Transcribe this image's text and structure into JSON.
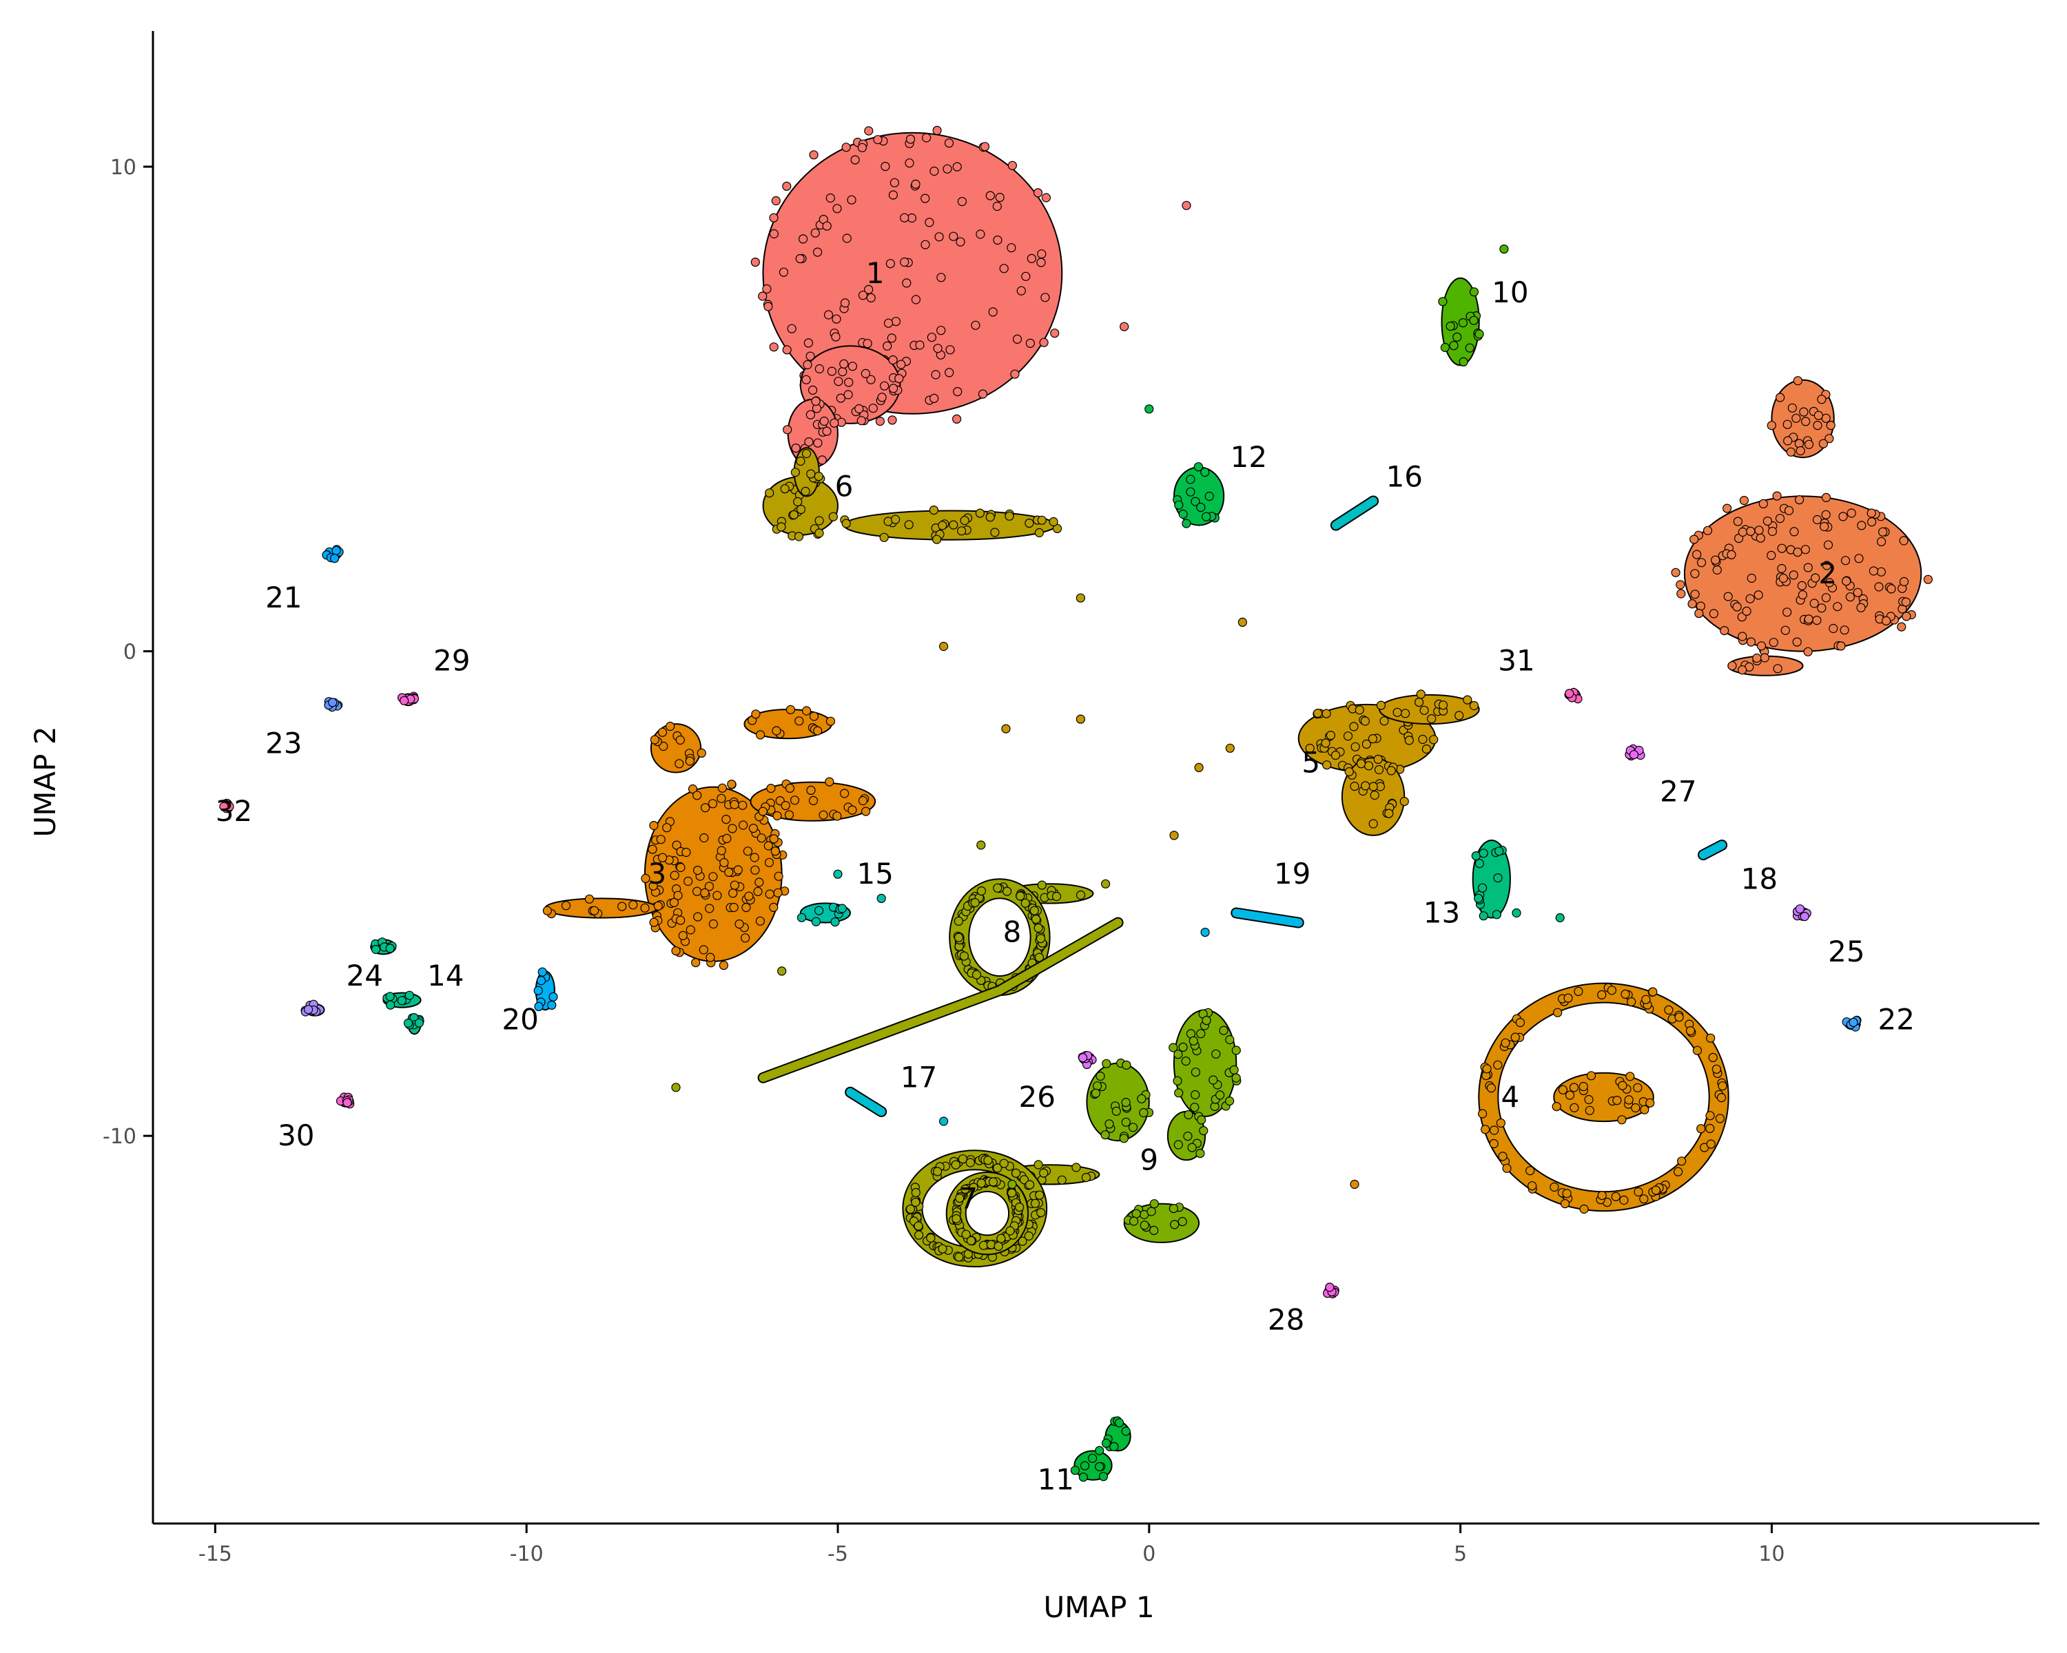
{
  "chart_data": {
    "type": "scatter",
    "title": "",
    "xlabel": "UMAP 1",
    "ylabel": "UMAP 2",
    "xlim": [
      -16,
      14.3
    ],
    "ylim": [
      -18,
      12.8
    ],
    "x_ticks": [
      -15,
      -10,
      -5,
      0,
      5,
      10
    ],
    "x_tick_labels": [
      "-15",
      "-10",
      "-5",
      "0",
      "5",
      "10"
    ],
    "y_ticks": [
      -10,
      0,
      10
    ],
    "y_tick_labels": [
      "-10",
      "0",
      "10"
    ],
    "grid": false,
    "legend": "none",
    "point_outline": "#000000",
    "clusters": [
      {
        "label": "1",
        "color": "#F8766D",
        "label_pos": [
          -4.4,
          7.8
        ],
        "points": [
          [
            -3.8,
            7.8,
            2.4,
            2.9
          ],
          [
            -4.8,
            5.5,
            0.8,
            0.8
          ],
          [
            -5.4,
            4.5,
            0.4,
            0.7
          ]
        ]
      },
      {
        "label": "2",
        "color": "#EF7F49",
        "label_pos": [
          10.9,
          1.6
        ],
        "points": [
          [
            10.5,
            1.6,
            1.9,
            1.6
          ],
          [
            10.5,
            4.8,
            0.5,
            0.8
          ],
          [
            9.9,
            -0.3,
            0.6,
            0.2
          ]
        ]
      },
      {
        "label": "3",
        "color": "#E58700",
        "label_pos": [
          -7.9,
          -4.6
        ],
        "points": [
          [
            -7.0,
            -4.6,
            1.1,
            1.8
          ],
          [
            -5.4,
            -3.1,
            1.0,
            0.4
          ],
          [
            -5.8,
            -1.5,
            0.7,
            0.3
          ],
          [
            -8.8,
            -5.3,
            0.9,
            0.2
          ],
          [
            -7.6,
            -2.0,
            0.4,
            0.5
          ]
        ]
      },
      {
        "label": "4",
        "color": "#DE8C00",
        "label_pos": [
          5.8,
          -9.2
        ],
        "ring": [
          7.3,
          -9.2,
          3.7,
          4.3
        ],
        "points": [
          [
            7.3,
            -9.2,
            0.8,
            0.5
          ]
        ]
      },
      {
        "label": "5",
        "color": "#C99800",
        "label_pos": [
          2.6,
          -2.3
        ],
        "points": [
          [
            3.5,
            -1.8,
            1.1,
            0.7
          ],
          [
            3.6,
            -3.0,
            0.5,
            0.8
          ],
          [
            4.5,
            -1.2,
            0.8,
            0.3
          ]
        ]
      },
      {
        "label": "6",
        "color": "#B79F00",
        "label_pos": [
          -4.9,
          3.4
        ],
        "points": [
          [
            -5.6,
            3.0,
            0.6,
            0.6
          ],
          [
            -3.2,
            2.6,
            1.7,
            0.3
          ],
          [
            -5.5,
            3.7,
            0.2,
            0.5
          ]
        ]
      },
      {
        "label": "7",
        "color": "#A3A500",
        "label_pos": [
          -2.9,
          -11.3
        ],
        "ring": [
          -2.8,
          -11.5,
          2.0,
          2.0
        ],
        "ring2": [
          -2.6,
          -11.6,
          1.0,
          1.3
        ],
        "points": [
          [
            -1.6,
            -10.8,
            0.8,
            0.2
          ]
        ]
      },
      {
        "label": "8",
        "color": "#9CA700",
        "label_pos": [
          -2.2,
          -5.8
        ],
        "ring": [
          -2.4,
          -5.9,
          1.3,
          2.0
        ],
        "line": [
          [
            -6.2,
            -8.8
          ],
          [
            -2.4,
            -7.0
          ],
          [
            -0.5,
            -5.6
          ]
        ],
        "points": [
          [
            -1.6,
            -5.0,
            0.7,
            0.2
          ]
        ]
      },
      {
        "label": "9",
        "color": "#7CAE00",
        "label_pos": [
          0.0,
          -10.5
        ],
        "points": [
          [
            0.9,
            -8.5,
            0.5,
            1.1
          ],
          [
            -0.5,
            -9.3,
            0.5,
            0.8
          ],
          [
            0.2,
            -11.8,
            0.6,
            0.4
          ],
          [
            0.6,
            -10.0,
            0.3,
            0.5
          ]
        ]
      },
      {
        "label": "10",
        "color": "#4FB400",
        "label_pos": [
          5.8,
          7.4
        ],
        "points": [
          [
            5.0,
            6.8,
            0.3,
            0.9
          ]
        ]
      },
      {
        "label": "11",
        "color": "#00BA38",
        "label_pos": [
          -1.5,
          -17.1
        ],
        "points": [
          [
            -0.9,
            -16.8,
            0.3,
            0.3
          ],
          [
            -0.5,
            -16.2,
            0.2,
            0.3
          ]
        ]
      },
      {
        "label": "12",
        "color": "#00BE49",
        "label_pos": [
          1.6,
          4.0
        ],
        "points": [
          [
            0.8,
            3.2,
            0.4,
            0.6
          ]
        ]
      },
      {
        "label": "13",
        "color": "#00BF7D",
        "label_pos": [
          4.7,
          -5.4
        ],
        "points": [
          [
            5.5,
            -4.7,
            0.3,
            0.8
          ]
        ]
      },
      {
        "label": "14",
        "color": "#00C08B",
        "label_pos": [
          -11.3,
          -6.7
        ],
        "points": [
          [
            -12.3,
            -6.1,
            0.2,
            0.15
          ],
          [
            -12.0,
            -7.2,
            0.3,
            0.15
          ],
          [
            -11.8,
            -7.7,
            0.1,
            0.2
          ]
        ]
      },
      {
        "label": "15",
        "color": "#00C1A7",
        "label_pos": [
          -4.4,
          -4.6
        ],
        "points": [
          [
            -5.2,
            -5.4,
            0.4,
            0.2
          ]
        ]
      },
      {
        "label": "16",
        "color": "#00BEC1",
        "label_pos": [
          4.1,
          3.6
        ],
        "line": [
          [
            3.0,
            2.6
          ],
          [
            3.6,
            3.1
          ]
        ]
      },
      {
        "label": "17",
        "color": "#00BDD0",
        "label_pos": [
          -3.7,
          -8.8
        ],
        "line": [
          [
            -4.8,
            -9.1
          ],
          [
            -4.3,
            -9.5
          ]
        ]
      },
      {
        "label": "18",
        "color": "#00BBDA",
        "label_pos": [
          9.8,
          -4.7
        ],
        "line": [
          [
            8.9,
            -4.2
          ],
          [
            9.2,
            -4.0
          ]
        ]
      },
      {
        "label": "19",
        "color": "#00B8E7",
        "label_pos": [
          2.3,
          -4.6
        ],
        "line": [
          [
            1.4,
            -5.4
          ],
          [
            2.4,
            -5.6
          ]
        ]
      },
      {
        "label": "20",
        "color": "#00B0F6",
        "label_pos": [
          -10.1,
          -7.6
        ],
        "points": [
          [
            -9.7,
            -7.0,
            0.15,
            0.4
          ]
        ]
      },
      {
        "label": "21",
        "color": "#00A9FF",
        "label_pos": [
          -13.9,
          1.1
        ],
        "points": [
          [
            -13.1,
            2.0,
            0.12,
            0.1
          ]
        ]
      },
      {
        "label": "22",
        "color": "#3DA1FF",
        "label_pos": [
          12.0,
          -7.6
        ],
        "points": [
          [
            11.3,
            -7.7,
            0.12,
            0.1
          ]
        ]
      },
      {
        "label": "23",
        "color": "#6395FF",
        "label_pos": [
          -13.9,
          -1.9
        ],
        "points": [
          [
            -13.1,
            -1.1,
            0.1,
            0.1
          ]
        ]
      },
      {
        "label": "24",
        "color": "#A58AFF",
        "label_pos": [
          -12.6,
          -6.7
        ],
        "points": [
          [
            -13.4,
            -7.4,
            0.15,
            0.12
          ]
        ]
      },
      {
        "label": "25",
        "color": "#C77CFF",
        "label_pos": [
          11.2,
          -6.2
        ],
        "points": [
          [
            10.5,
            -5.4,
            0.1,
            0.1
          ]
        ]
      },
      {
        "label": "26",
        "color": "#DF70F8",
        "label_pos": [
          -1.8,
          -9.2
        ],
        "points": [
          [
            -1.0,
            -8.4,
            0.12,
            0.12
          ]
        ]
      },
      {
        "label": "27",
        "color": "#E76BF3",
        "label_pos": [
          8.5,
          -2.9
        ],
        "points": [
          [
            7.8,
            -2.1,
            0.1,
            0.1
          ]
        ]
      },
      {
        "label": "28",
        "color": "#F263E2",
        "label_pos": [
          2.2,
          -13.8
        ],
        "points": [
          [
            2.9,
            -13.2,
            0.08,
            0.08
          ]
        ]
      },
      {
        "label": "29",
        "color": "#FA62D4",
        "label_pos": [
          -11.2,
          -0.2
        ],
        "points": [
          [
            -11.9,
            -1.0,
            0.1,
            0.12
          ]
        ]
      },
      {
        "label": "30",
        "color": "#FD61D1",
        "label_pos": [
          -13.7,
          -10.0
        ],
        "points": [
          [
            -12.9,
            -9.3,
            0.1,
            0.1
          ]
        ]
      },
      {
        "label": "31",
        "color": "#FF62BC",
        "label_pos": [
          5.9,
          -0.2
        ],
        "points": [
          [
            6.8,
            -0.9,
            0.12,
            0.1
          ]
        ]
      },
      {
        "label": "32",
        "color": "#FF6A98",
        "label_pos": [
          -14.7,
          -3.3
        ],
        "points": [
          [
            -14.8,
            -3.2,
            0.06,
            0.06
          ]
        ]
      }
    ],
    "scattered_points": [
      {
        "x": 0.6,
        "y": 9.2,
        "color": "#F8766D"
      },
      {
        "x": -0.4,
        "y": 6.7,
        "color": "#F8766D"
      },
      {
        "x": 5.7,
        "y": 8.3,
        "color": "#4FB400"
      },
      {
        "x": 0.0,
        "y": 5.0,
        "color": "#00BE49"
      },
      {
        "x": -1.1,
        "y": 1.1,
        "color": "#B79F00"
      },
      {
        "x": 1.5,
        "y": 0.6,
        "color": "#C99800"
      },
      {
        "x": -3.3,
        "y": 0.1,
        "color": "#C99800"
      },
      {
        "x": -2.3,
        "y": -1.6,
        "color": "#C99800"
      },
      {
        "x": -1.1,
        "y": -1.4,
        "color": "#C99800"
      },
      {
        "x": 0.8,
        "y": -2.4,
        "color": "#C99800"
      },
      {
        "x": 1.3,
        "y": -2.0,
        "color": "#C99800"
      },
      {
        "x": 0.4,
        "y": -3.8,
        "color": "#C99800"
      },
      {
        "x": -2.7,
        "y": -4.0,
        "color": "#9CA700"
      },
      {
        "x": -0.7,
        "y": -4.8,
        "color": "#9CA700"
      },
      {
        "x": -5.9,
        "y": -6.6,
        "color": "#9CA700"
      },
      {
        "x": -7.6,
        "y": -9.0,
        "color": "#9CA700"
      },
      {
        "x": -3.3,
        "y": -9.7,
        "color": "#00BDD0"
      },
      {
        "x": 0.9,
        "y": -5.8,
        "color": "#00B8E7"
      },
      {
        "x": 6.6,
        "y": -5.5,
        "color": "#00BF7D"
      },
      {
        "x": 5.9,
        "y": -5.4,
        "color": "#00BF7D"
      },
      {
        "x": -5.0,
        "y": -4.6,
        "color": "#00C1A7"
      },
      {
        "x": -4.3,
        "y": -5.1,
        "color": "#00C1A7"
      },
      {
        "x": 3.3,
        "y": -11.0,
        "color": "#DE8C00"
      },
      {
        "x": -2.2,
        "y": -11.0,
        "color": "#7CAE00"
      }
    ]
  }
}
